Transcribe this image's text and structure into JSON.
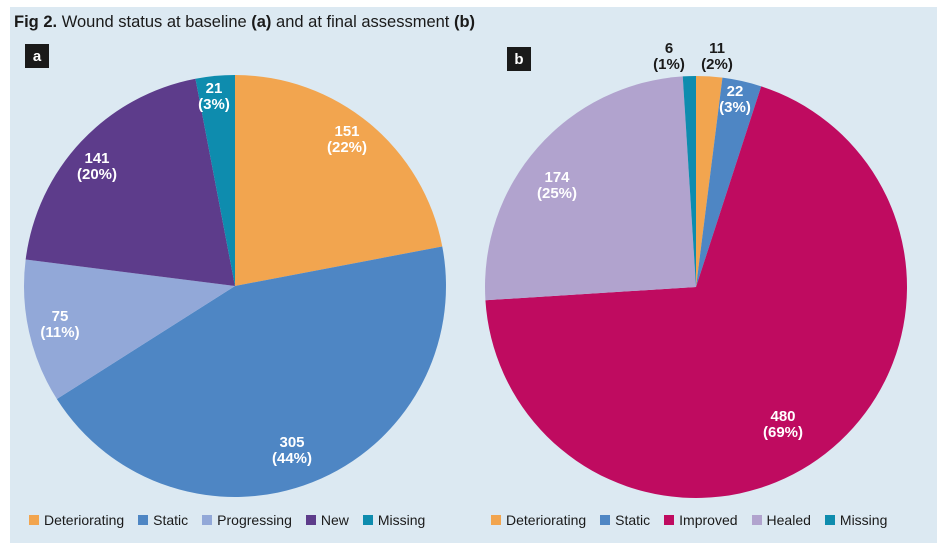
{
  "figure": {
    "title": {
      "fig": "Fig 2.",
      "part1": "Wound status at baseline",
      "marker_a": "(a)",
      "part2": "and at final assessment",
      "marker_b": "(b)"
    }
  },
  "chart_data": [
    {
      "type": "pie",
      "panel": "a",
      "badge": "a",
      "title": "Wound status at baseline",
      "categories": [
        "Deteriorating",
        "Static",
        "Progressing",
        "New",
        "Missing"
      ],
      "values": [
        151,
        305,
        75,
        141,
        21
      ],
      "percents": [
        22,
        44,
        11,
        20,
        3
      ],
      "colors": [
        "#F2A54F",
        "#4E86C4",
        "#92A8D8",
        "#5D3C8B",
        "#0E8CAE"
      ],
      "start_angle": "12 o'clock",
      "direction": "clockwise",
      "legend_position": "bottom-left"
    },
    {
      "type": "pie",
      "panel": "b",
      "badge": "b",
      "title": "Wound status at final assessment",
      "categories": [
        "Deteriorating",
        "Static",
        "Improved",
        "Healed",
        "Missing"
      ],
      "values": [
        11,
        22,
        480,
        174,
        6
      ],
      "percents": [
        2,
        3,
        69,
        25,
        1
      ],
      "colors": [
        "#F2A54F",
        "#4E86C4",
        "#BF0B60",
        "#B1A3CE",
        "#0E8CAE"
      ],
      "start_angle": "12 o'clock",
      "direction": "clockwise",
      "legend_position": "bottom-left"
    }
  ],
  "style": {
    "panel_background": "#DCE9F2",
    "page_background": "#FFFFFF",
    "badge_background": "#1A1A1A",
    "badge_text_color": "#FFFFFF",
    "text_color": "#1A1A1A",
    "slice_label_color": "#FFFFFF"
  }
}
